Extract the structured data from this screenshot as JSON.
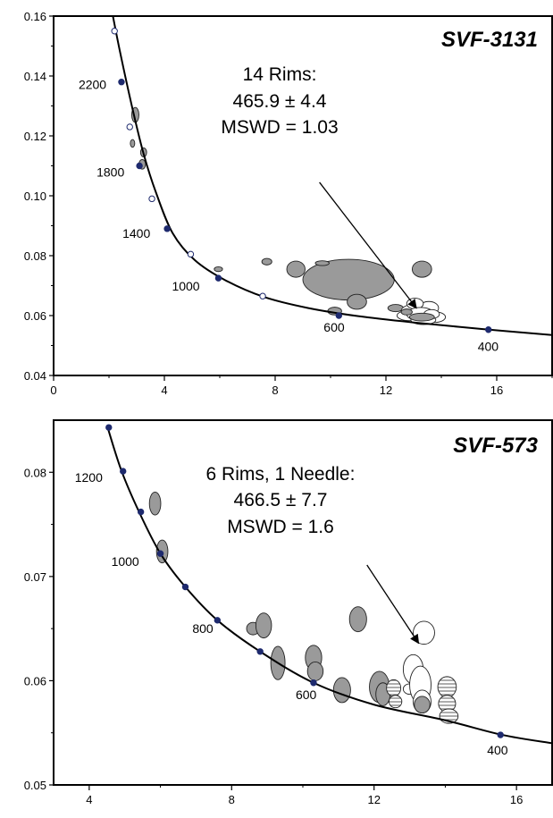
{
  "chart_data": [
    {
      "type": "scatter",
      "title": "SVF-3131",
      "xlabel": "",
      "ylabel": "",
      "xlim": [
        0,
        18
      ],
      "ylim": [
        0.04,
        0.16
      ],
      "xticks": [
        0,
        4,
        8,
        12,
        16
      ],
      "yticks": [
        0.04,
        0.06,
        0.08,
        0.1,
        0.12,
        0.14,
        0.16
      ],
      "ytick_labels": [
        "0.04",
        "0.06",
        "0.08",
        "0.10",
        "0.12",
        "0.14",
        "0.16"
      ],
      "annotation": [
        "14 Rims:",
        "465.9 ± 4.4",
        "MSWD = 1.03"
      ],
      "arrow": {
        "from": [
          9.6,
          0.1045
        ],
        "to": [
          13.1,
          0.0625
        ]
      },
      "concordia": [
        [
          2.1,
          0.162
        ],
        [
          2.4,
          0.148
        ],
        [
          2.85,
          0.129
        ],
        [
          3.25,
          0.114
        ],
        [
          3.7,
          0.101
        ],
        [
          4.3,
          0.0875
        ],
        [
          5.1,
          0.0785
        ],
        [
          6.2,
          0.0718
        ],
        [
          7.6,
          0.0662
        ],
        [
          9.2,
          0.0625
        ],
        [
          11.0,
          0.0598
        ],
        [
          13.0,
          0.0577
        ],
        [
          15.5,
          0.0555
        ],
        [
          18.0,
          0.0535
        ]
      ],
      "age_markers": [
        {
          "age": "2200",
          "x": 2.45,
          "y": 0.138,
          "fill": "#1e2a6e"
        },
        {
          "age": "1800",
          "x": 3.1,
          "y": 0.11,
          "fill": "#1e2a6e"
        },
        {
          "age": "1400",
          "x": 4.1,
          "y": 0.089,
          "fill": "#1e2a6e"
        },
        {
          "age": "1000",
          "x": 5.95,
          "y": 0.0725,
          "fill": "#1e2a6e"
        },
        {
          "age": "600",
          "x": 10.3,
          "y": 0.06,
          "fill": "#1e2a6e"
        },
        {
          "age": "400",
          "x": 15.7,
          "y": 0.0553,
          "fill": "#1e2a6e"
        },
        {
          "age": "",
          "x": 2.2,
          "y": 0.155,
          "fill": "#ffffff"
        },
        {
          "age": "",
          "x": 2.75,
          "y": 0.123,
          "fill": "#ffffff"
        },
        {
          "age": "",
          "x": 3.55,
          "y": 0.099,
          "fill": "#ffffff"
        },
        {
          "age": "",
          "x": 4.95,
          "y": 0.0805,
          "fill": "#ffffff"
        },
        {
          "age": "",
          "x": 7.55,
          "y": 0.0665,
          "fill": "#ffffff"
        }
      ],
      "ellipses": [
        {
          "x": 2.95,
          "y": 0.127,
          "rx": 0.13,
          "ry": 0.0025,
          "rot": 0,
          "fill": "gray"
        },
        {
          "x": 2.85,
          "y": 0.1175,
          "rx": 0.08,
          "ry": 0.0013,
          "rot": 0,
          "fill": "gray"
        },
        {
          "x": 3.25,
          "y": 0.1145,
          "rx": 0.11,
          "ry": 0.0015,
          "rot": 0,
          "fill": "gray"
        },
        {
          "x": 3.2,
          "y": 0.1105,
          "rx": 0.12,
          "ry": 0.0016,
          "rot": 0,
          "fill": "gray"
        },
        {
          "x": 5.95,
          "y": 0.0755,
          "rx": 0.15,
          "ry": 0.0008,
          "rot": 0,
          "fill": "gray"
        },
        {
          "x": 7.7,
          "y": 0.078,
          "rx": 0.18,
          "ry": 0.0011,
          "rot": 0,
          "fill": "gray"
        },
        {
          "x": 8.75,
          "y": 0.0755,
          "rx": 0.33,
          "ry": 0.0027,
          "rot": 0,
          "fill": "gray"
        },
        {
          "x": 10.65,
          "y": 0.072,
          "rx": 1.65,
          "ry": 0.0068,
          "rot": 0,
          "fill": "gray"
        },
        {
          "x": 9.7,
          "y": 0.0775,
          "rx": 0.25,
          "ry": 0.0008,
          "rot": 0,
          "fill": "gray"
        },
        {
          "x": 10.95,
          "y": 0.0646,
          "rx": 0.35,
          "ry": 0.0025,
          "rot": 0,
          "fill": "gray"
        },
        {
          "x": 10.15,
          "y": 0.0615,
          "rx": 0.25,
          "ry": 0.0013,
          "rot": 0,
          "fill": "gray"
        },
        {
          "x": 12.35,
          "y": 0.0625,
          "rx": 0.28,
          "ry": 0.0012,
          "rot": 0,
          "fill": "gray"
        },
        {
          "x": 13.3,
          "y": 0.0755,
          "rx": 0.35,
          "ry": 0.0027,
          "rot": 0,
          "fill": "gray"
        },
        {
          "x": 13.0,
          "y": 0.0615,
          "rx": 0.45,
          "ry": 0.0022,
          "rot": 0,
          "fill": "white"
        },
        {
          "x": 13.55,
          "y": 0.0625,
          "rx": 0.35,
          "ry": 0.0022,
          "rot": 0,
          "fill": "white"
        },
        {
          "x": 13.05,
          "y": 0.064,
          "rx": 0.3,
          "ry": 0.0018,
          "rot": 0,
          "fill": "white"
        },
        {
          "x": 12.85,
          "y": 0.06,
          "rx": 0.45,
          "ry": 0.0017,
          "rot": 0,
          "fill": "white"
        },
        {
          "x": 13.25,
          "y": 0.0605,
          "rx": 0.5,
          "ry": 0.0022,
          "rot": 0,
          "fill": "white"
        },
        {
          "x": 13.75,
          "y": 0.0595,
          "rx": 0.4,
          "ry": 0.0018,
          "rot": 0,
          "fill": "white"
        },
        {
          "x": 13.35,
          "y": 0.0585,
          "rx": 0.45,
          "ry": 0.0015,
          "rot": 0,
          "fill": "white"
        },
        {
          "x": 13.65,
          "y": 0.0605,
          "rx": 0.28,
          "ry": 0.0015,
          "rot": 0,
          "fill": "white"
        },
        {
          "x": 13.3,
          "y": 0.0595,
          "rx": 0.45,
          "ry": 0.0013,
          "rot": 0,
          "fill": "gray"
        },
        {
          "x": 12.75,
          "y": 0.0612,
          "rx": 0.2,
          "ry": 0.001,
          "rot": 0,
          "fill": "gray"
        }
      ]
    },
    {
      "type": "scatter",
      "title": "SVF-573",
      "xlabel": "",
      "ylabel": "",
      "xlim": [
        3,
        17
      ],
      "ylim": [
        0.05,
        0.085
      ],
      "xticks": [
        4,
        8,
        12,
        16
      ],
      "yticks": [
        0.05,
        0.06,
        0.07,
        0.08
      ],
      "ytick_labels": [
        "0.05",
        "0.06",
        "0.07",
        "0.08"
      ],
      "annotation": [
        "6 Rims, 1 Needle:",
        "466.5 ± 7.7",
        "MSWD = 1.6"
      ],
      "arrow": {
        "from": [
          11.8,
          0.0711
        ],
        "to": [
          13.25,
          0.0636
        ]
      },
      "concordia": [
        [
          4.5,
          0.0845
        ],
        [
          4.9,
          0.0802
        ],
        [
          5.4,
          0.0762
        ],
        [
          6.0,
          0.0722
        ],
        [
          6.7,
          0.069
        ],
        [
          7.6,
          0.0658
        ],
        [
          8.8,
          0.0628
        ],
        [
          10.3,
          0.0598
        ],
        [
          12.0,
          0.0577
        ],
        [
          14.0,
          0.0562
        ],
        [
          15.6,
          0.0548
        ],
        [
          17.0,
          0.054
        ]
      ],
      "age_markers": [
        {
          "age": "",
          "x": 4.55,
          "y": 0.0843,
          "fill": "#1e2a6e"
        },
        {
          "age": "1200",
          "x": 4.95,
          "y": 0.0801,
          "fill": "#1e2a6e"
        },
        {
          "age": "",
          "x": 5.45,
          "y": 0.0762,
          "fill": "#1e2a6e"
        },
        {
          "age": "1000",
          "x": 6.0,
          "y": 0.0722,
          "fill": "#1e2a6e"
        },
        {
          "age": "",
          "x": 6.7,
          "y": 0.069,
          "fill": "#1e2a6e"
        },
        {
          "age": "800",
          "x": 7.6,
          "y": 0.0658,
          "fill": "#1e2a6e"
        },
        {
          "age": "",
          "x": 8.8,
          "y": 0.0628,
          "fill": "#1e2a6e"
        },
        {
          "age": "600",
          "x": 10.3,
          "y": 0.0598,
          "fill": "#1e2a6e"
        },
        {
          "age": "400",
          "x": 15.55,
          "y": 0.0548,
          "fill": "#1e2a6e"
        }
      ],
      "ellipses": [
        {
          "x": 5.85,
          "y": 0.077,
          "rx": 0.16,
          "ry": 0.0011,
          "rot": 0,
          "fill": "gray"
        },
        {
          "x": 6.05,
          "y": 0.0724,
          "rx": 0.16,
          "ry": 0.0011,
          "rot": 0,
          "fill": "gray"
        },
        {
          "x": 8.6,
          "y": 0.065,
          "rx": 0.18,
          "ry": 0.0006,
          "rot": 0,
          "fill": "gray"
        },
        {
          "x": 8.9,
          "y": 0.0653,
          "rx": 0.22,
          "ry": 0.0012,
          "rot": 0,
          "fill": "gray"
        },
        {
          "x": 9.3,
          "y": 0.0617,
          "rx": 0.2,
          "ry": 0.0016,
          "rot": 0,
          "fill": "gray"
        },
        {
          "x": 10.3,
          "y": 0.0622,
          "rx": 0.23,
          "ry": 0.0012,
          "rot": 0,
          "fill": "gray"
        },
        {
          "x": 10.35,
          "y": 0.0609,
          "rx": 0.22,
          "ry": 0.0009,
          "rot": 0,
          "fill": "gray"
        },
        {
          "x": 11.1,
          "y": 0.0591,
          "rx": 0.24,
          "ry": 0.0012,
          "rot": 0,
          "fill": "gray"
        },
        {
          "x": 11.55,
          "y": 0.0659,
          "rx": 0.24,
          "ry": 0.0012,
          "rot": 0,
          "fill": "gray"
        },
        {
          "x": 12.15,
          "y": 0.0594,
          "rx": 0.28,
          "ry": 0.0015,
          "rot": 0,
          "fill": "gray"
        },
        {
          "x": 12.25,
          "y": 0.0587,
          "rx": 0.2,
          "ry": 0.0011,
          "rot": 0,
          "fill": "gray"
        },
        {
          "x": 12.55,
          "y": 0.0593,
          "rx": 0.2,
          "ry": 0.0008,
          "rot": 0,
          "fill": "hatched"
        },
        {
          "x": 12.6,
          "y": 0.058,
          "rx": 0.18,
          "ry": 0.0006,
          "rot": 0,
          "fill": "hatched"
        },
        {
          "x": 13.0,
          "y": 0.0592,
          "rx": 0.18,
          "ry": 0.0005,
          "rot": 0,
          "fill": "white"
        },
        {
          "x": 13.4,
          "y": 0.0646,
          "rx": 0.3,
          "ry": 0.0011,
          "rot": 0,
          "fill": "white"
        },
        {
          "x": 13.1,
          "y": 0.0611,
          "rx": 0.28,
          "ry": 0.0014,
          "rot": 0,
          "fill": "white"
        },
        {
          "x": 13.3,
          "y": 0.0596,
          "rx": 0.3,
          "ry": 0.0018,
          "rot": 0,
          "fill": "white"
        },
        {
          "x": 13.35,
          "y": 0.058,
          "rx": 0.25,
          "ry": 0.0011,
          "rot": 0,
          "fill": "white"
        },
        {
          "x": 13.35,
          "y": 0.0577,
          "rx": 0.22,
          "ry": 0.0008,
          "rot": 0,
          "fill": "gray"
        },
        {
          "x": 14.05,
          "y": 0.0594,
          "rx": 0.26,
          "ry": 0.001,
          "rot": 0,
          "fill": "hatched"
        },
        {
          "x": 14.05,
          "y": 0.0578,
          "rx": 0.24,
          "ry": 0.0008,
          "rot": 0,
          "fill": "hatched"
        },
        {
          "x": 14.1,
          "y": 0.0566,
          "rx": 0.26,
          "ry": 0.0007,
          "rot": 0,
          "fill": "hatched"
        }
      ]
    }
  ]
}
